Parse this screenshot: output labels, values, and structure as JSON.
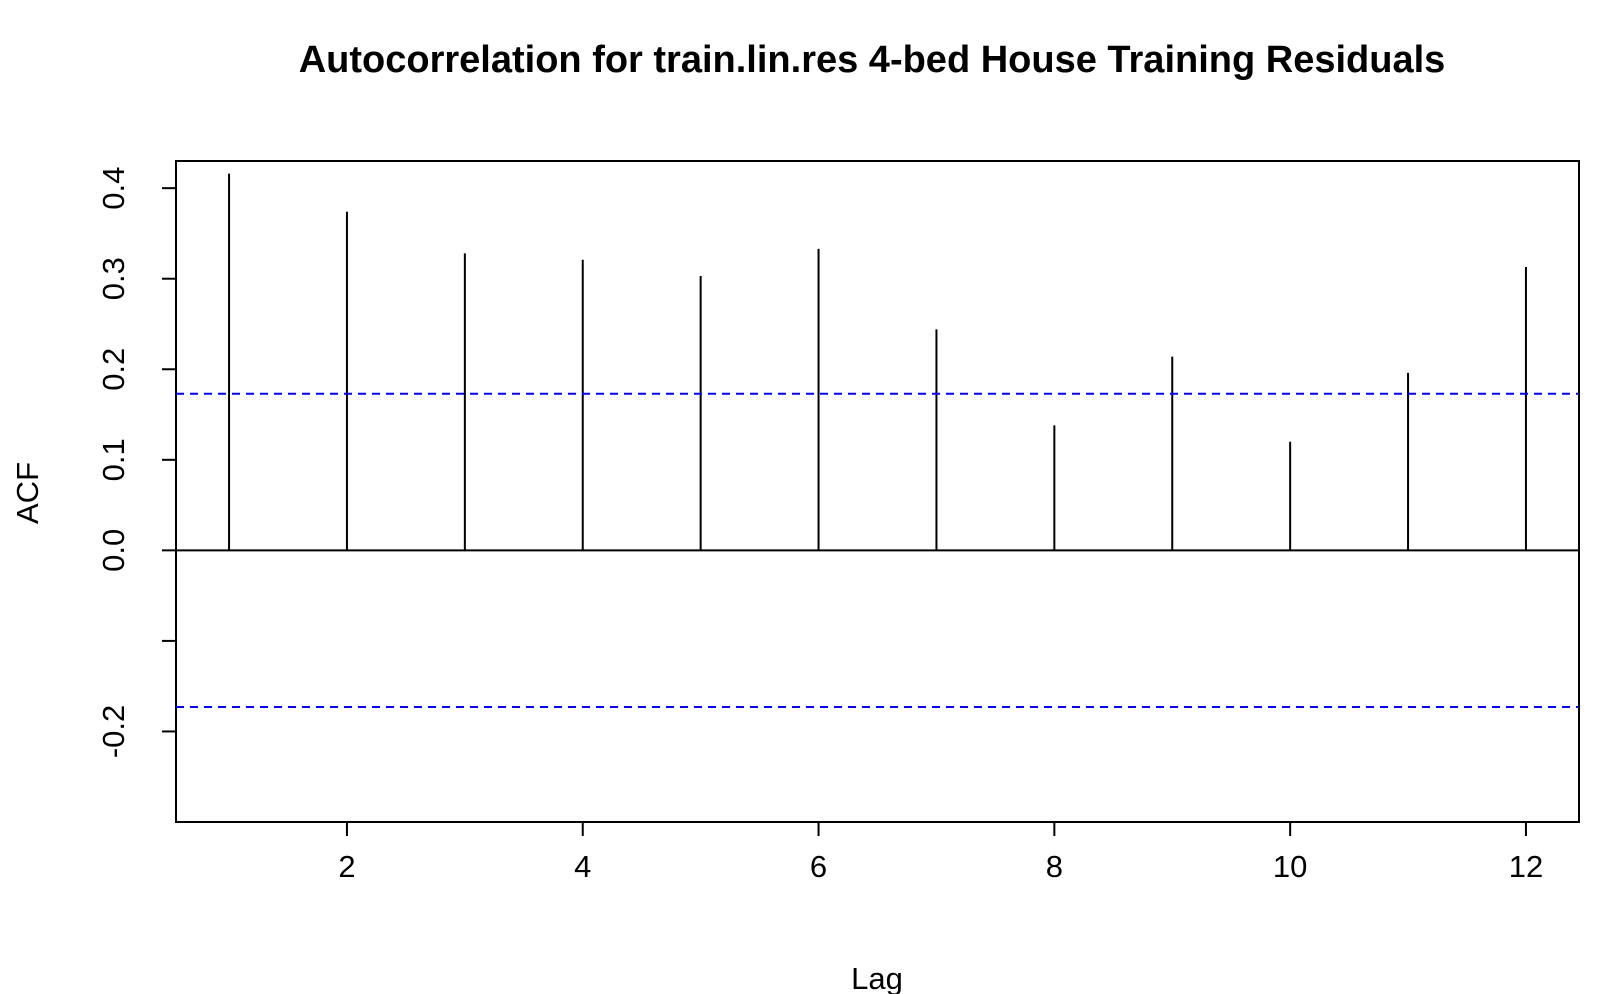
{
  "chart_data": {
    "type": "bar",
    "title": "Autocorrelation for train.lin.res 4-bed House Training Residuals",
    "xlabel": "Lag",
    "ylabel": "ACF",
    "xlim": [
      0.55,
      12.45
    ],
    "ylim": [
      -0.3,
      0.43
    ],
    "x_ticks": [
      2,
      4,
      6,
      8,
      10,
      12
    ],
    "x_tick_labels": [
      "2",
      "4",
      "6",
      "8",
      "10",
      "12"
    ],
    "y_ticks": [
      -0.2,
      -0.1,
      0.0,
      0.1,
      0.2,
      0.3,
      0.4
    ],
    "y_tick_labels": [
      "-0.2",
      "",
      "0.0",
      "0.1",
      "0.2",
      "0.3",
      "0.4"
    ],
    "x": [
      1,
      2,
      3,
      4,
      5,
      6,
      7,
      8,
      9,
      10,
      11,
      12
    ],
    "values": [
      0.416,
      0.374,
      0.328,
      0.321,
      0.303,
      0.333,
      0.244,
      0.138,
      0.214,
      0.12,
      0.196,
      0.313
    ],
    "confidence_band": [
      0.173,
      -0.173
    ],
    "colors": {
      "bars": "#000000",
      "confidence_line": "#0000ff",
      "axes": "#000000"
    },
    "grid": false,
    "legend": "none"
  }
}
